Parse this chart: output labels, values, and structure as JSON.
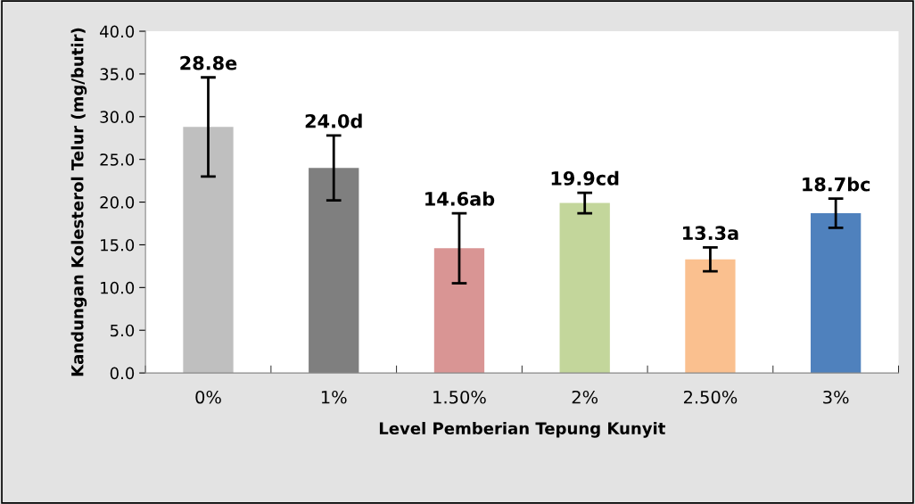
{
  "chart_data": {
    "type": "bar",
    "xlabel": "Level Pemberian Tepung Kunyit",
    "ylabel": "Kandungan Kolesterol Telur (mg/butir)",
    "categories": [
      "0%",
      "1%",
      "1.50%",
      "2%",
      "2.50%",
      "3%"
    ],
    "values": [
      28.8,
      24.0,
      14.6,
      19.9,
      13.3,
      18.7
    ],
    "colors": [
      "#bfbfbf",
      "#7f7f7f",
      "#d99594",
      "#c3d69b",
      "#fac08f",
      "#4f81bd"
    ],
    "errors": [
      5.8,
      3.8,
      4.1,
      1.2,
      1.4,
      1.7
    ],
    "value_labels": [
      "28.8e",
      "24.0d",
      "14.6ab",
      "19.9cd",
      "13.3a",
      "18.7bc"
    ],
    "ylim": [
      0,
      40
    ],
    "yticks": [
      {
        "value": 0,
        "label": "0.0"
      },
      {
        "value": 5,
        "label": "5.0"
      },
      {
        "value": 10,
        "label": "10.0"
      },
      {
        "value": 15,
        "label": "15.0"
      },
      {
        "value": 20,
        "label": "20.0"
      },
      {
        "value": 25,
        "label": "25.0"
      },
      {
        "value": 30,
        "label": "30.0"
      },
      {
        "value": 35,
        "label": "35.0"
      },
      {
        "value": 40,
        "label": "40.0"
      }
    ],
    "grid": false,
    "legend": false
  }
}
